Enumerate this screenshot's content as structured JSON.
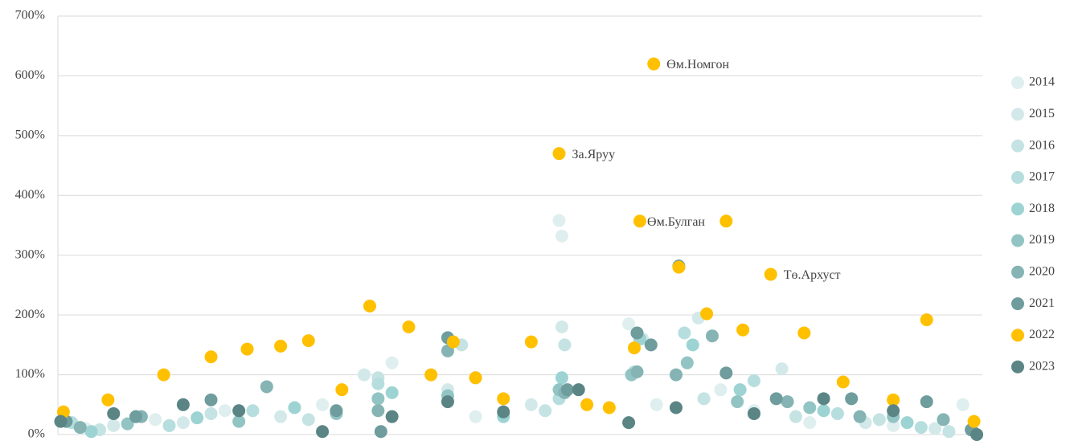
{
  "chart_data": {
    "type": "scatter",
    "xlim": [
      0,
      332
    ],
    "ylim": [
      0,
      700
    ],
    "yticks": [
      {
        "value": 0,
        "label": "0%"
      },
      {
        "value": 100,
        "label": "100%"
      },
      {
        "value": 200,
        "label": "200%"
      },
      {
        "value": 300,
        "label": "300%"
      },
      {
        "value": 400,
        "label": "400%"
      },
      {
        "value": 500,
        "label": "500%"
      },
      {
        "value": 600,
        "label": "600%"
      },
      {
        "value": 700,
        "label": "700%"
      }
    ],
    "grid": true,
    "legend": "right",
    "series": [
      {
        "name": "2014",
        "color": "#dfeeee",
        "x": [
          10,
          35,
          60,
          95,
          120,
          150,
          180,
          181,
          205,
          215,
          238,
          250,
          270,
          300,
          325
        ],
        "values": [
          10,
          25,
          40,
          50,
          120,
          30,
          358,
          332,
          185,
          50,
          75,
          40,
          20,
          15,
          50
        ]
      },
      {
        "name": "2015",
        "color": "#d3e9e9",
        "x": [
          20,
          45,
          80,
          110,
          140,
          170,
          181,
          210,
          230,
          260,
          290,
          315
        ],
        "values": [
          15,
          20,
          30,
          100,
          75,
          50,
          180,
          160,
          195,
          110,
          20,
          10
        ]
      },
      {
        "name": "2016",
        "color": "#c5e3e3",
        "x": [
          15,
          55,
          90,
          115,
          145,
          175,
          182,
          208,
          232,
          265,
          295,
          320
        ],
        "values": [
          8,
          35,
          25,
          95,
          150,
          40,
          150,
          170,
          60,
          30,
          25,
          5
        ]
      },
      {
        "name": "2017",
        "color": "#b7dede",
        "x": [
          5,
          40,
          70,
          115,
          150,
          180,
          207,
          225,
          250,
          280,
          310
        ],
        "values": [
          20,
          15,
          40,
          85,
          95,
          60,
          105,
          170,
          90,
          35,
          12
        ]
      },
      {
        "name": "2018",
        "color": "#9dd3d3",
        "x": [
          12,
          50,
          85,
          120,
          160,
          181,
          209,
          228,
          245,
          275,
          305,
          328
        ],
        "values": [
          5,
          28,
          45,
          70,
          30,
          95,
          160,
          150,
          75,
          40,
          20,
          8
        ]
      },
      {
        "name": "2019",
        "color": "#93c4c4",
        "x": [
          25,
          65,
          100,
          115,
          140,
          180,
          206,
          226,
          244,
          270,
          300
        ],
        "values": [
          18,
          22,
          35,
          60,
          65,
          75,
          100,
          120,
          55,
          45,
          30
        ]
      },
      {
        "name": "2020",
        "color": "#86b3b3",
        "x": [
          8,
          30,
          75,
          115,
          140,
          182,
          208,
          222,
          235,
          262,
          288,
          318
        ],
        "values": [
          12,
          30,
          80,
          40,
          140,
          70,
          105,
          100,
          165,
          55,
          30,
          25
        ]
      },
      {
        "name": "2021",
        "color": "#6f9c9c",
        "x": [
          3,
          28,
          55,
          100,
          116,
          140,
          183,
          208,
          213,
          223,
          240,
          258,
          285,
          312,
          328
        ],
        "values": [
          22,
          30,
          58,
          40,
          5,
          162,
          75,
          170,
          150,
          282,
          103,
          60,
          60,
          55,
          8
        ]
      },
      {
        "name": "2022",
        "color": "#ffc000",
        "x": [
          2,
          18,
          38,
          55,
          68,
          80,
          90,
          102,
          112,
          126,
          134,
          142,
          150,
          160,
          170,
          180,
          190,
          198,
          207,
          209,
          214,
          223,
          233,
          240,
          246,
          256,
          268,
          282,
          300,
          312,
          329
        ],
        "values": [
          38,
          58,
          100,
          130,
          143,
          148,
          157,
          75,
          215,
          180,
          100,
          155,
          95,
          60,
          155,
          470,
          50,
          45,
          145,
          357,
          620,
          280,
          202,
          357,
          175,
          268,
          170,
          88,
          58,
          192,
          22
        ]
      },
      {
        "name": "2023",
        "color": "#5b8585",
        "x": [
          1,
          20,
          45,
          65,
          95,
          120,
          140,
          160,
          187,
          205,
          222,
          250,
          275,
          300,
          330
        ],
        "values": [
          22,
          35,
          50,
          40,
          5,
          30,
          55,
          38,
          75,
          20,
          45,
          35,
          60,
          40,
          0
        ]
      }
    ],
    "annotations": [
      {
        "text": "Өм.Номгон",
        "x": 214,
        "y": 620
      },
      {
        "text": "За.Яруу",
        "x": 180,
        "y": 470
      },
      {
        "text": "Өм.Булган",
        "x": 207,
        "y": 357
      },
      {
        "text": "Тө.Архуст",
        "x": 256,
        "y": 268
      }
    ]
  }
}
